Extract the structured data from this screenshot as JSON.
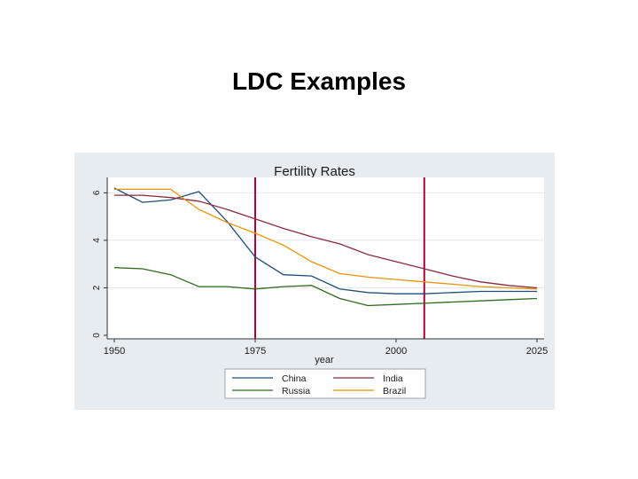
{
  "slide": {
    "title": "LDC Examples"
  },
  "chart_data": {
    "type": "line",
    "title": "Fertility Rates",
    "xlabel": "year",
    "ylabel": "",
    "xlim": [
      1950,
      2025
    ],
    "ylim": [
      0,
      6.5
    ],
    "xticks": [
      "1950",
      "1975",
      "2000",
      "2025"
    ],
    "yticks": [
      "0",
      "2",
      "4",
      "6"
    ],
    "reference_lines": [
      1975,
      2005
    ],
    "reference_line_color": "#b0003a",
    "grid": "horizontal",
    "legend_position": "bottom",
    "series": [
      {
        "name": "China",
        "color": "#1f4e79",
        "x": [
          1950,
          1955,
          1960,
          1965,
          1970,
          1975,
          1980,
          1985,
          1990,
          1995,
          2000,
          2005,
          2010,
          2015,
          2020,
          2025
        ],
        "y": [
          6.2,
          5.6,
          5.7,
          6.05,
          4.8,
          3.3,
          2.55,
          2.5,
          1.95,
          1.8,
          1.75,
          1.75,
          1.8,
          1.85,
          1.85,
          1.85
        ]
      },
      {
        "name": "India",
        "color": "#8b2a3e",
        "x": [
          1950,
          1955,
          1960,
          1965,
          1970,
          1975,
          1980,
          1985,
          1990,
          1995,
          2000,
          2005,
          2010,
          2015,
          2020,
          2025
        ],
        "y": [
          5.9,
          5.9,
          5.8,
          5.65,
          5.3,
          4.9,
          4.5,
          4.15,
          3.85,
          3.4,
          3.1,
          2.8,
          2.5,
          2.25,
          2.1,
          2.0
        ]
      },
      {
        "name": "Russia",
        "color": "#2e6b1a",
        "x": [
          1950,
          1955,
          1960,
          1965,
          1970,
          1975,
          1980,
          1985,
          1990,
          1995,
          2000,
          2005,
          2010,
          2015,
          2020,
          2025
        ],
        "y": [
          2.85,
          2.8,
          2.55,
          2.05,
          2.05,
          1.95,
          2.05,
          2.1,
          1.55,
          1.25,
          1.3,
          1.35,
          1.4,
          1.45,
          1.5,
          1.55
        ]
      },
      {
        "name": "Brazil",
        "color": "#e8930a",
        "x": [
          1950,
          1955,
          1960,
          1965,
          1970,
          1975,
          1980,
          1985,
          1990,
          1995,
          2000,
          2005,
          2010,
          2015,
          2020,
          2025
        ],
        "y": [
          6.15,
          6.15,
          6.15,
          5.3,
          4.75,
          4.3,
          3.8,
          3.1,
          2.6,
          2.45,
          2.35,
          2.25,
          2.15,
          2.05,
          2.0,
          1.95
        ]
      }
    ]
  }
}
